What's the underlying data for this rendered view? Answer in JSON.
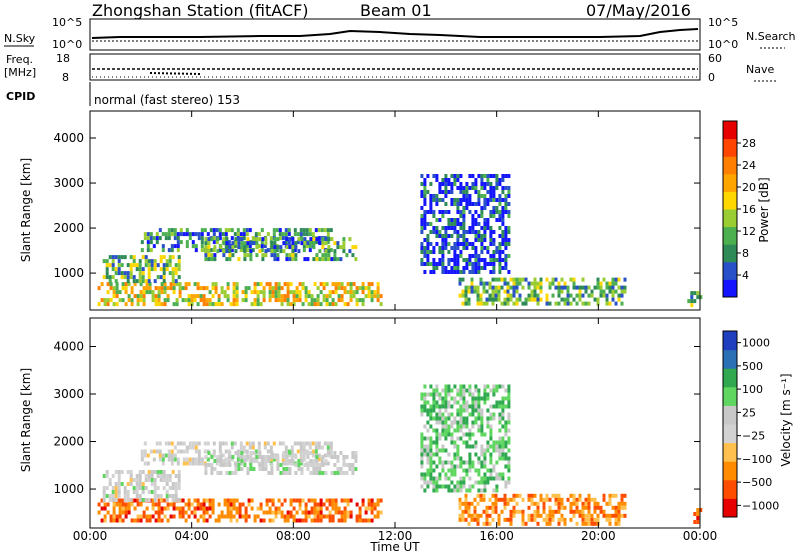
{
  "header": {
    "station": "Zhongshan Station (fitACF)",
    "beam": "Beam 01",
    "date": "07/May/2016"
  },
  "sky_panel": {
    "left_label": "N.Sky",
    "left_ticks": [
      "10^5",
      "10^0"
    ],
    "right_ticks": [
      "10^5",
      "10^0"
    ],
    "right_label": "N.Search"
  },
  "freq_panel": {
    "left_label_1": "Freq.",
    "left_label_2": "[MHz]",
    "left_ticks": [
      "18",
      "8"
    ],
    "right_ticks": [
      "60",
      "0"
    ],
    "right_label": "Nave"
  },
  "cpid": {
    "label": "CPID",
    "text": "normal (fast stereo) 153"
  },
  "x_axis": {
    "label": "Time UT",
    "ticks": [
      "00:00",
      "04:00",
      "08:00",
      "12:00",
      "16:00",
      "20:00",
      "00:00"
    ]
  },
  "colors": {
    "velocity_scale": [
      "#e60000",
      "#ff4d00",
      "#ff8c00",
      "#ffc04d",
      "#d2d2d2",
      "#c8c8c8",
      "#5fd65f",
      "#2fa84f",
      "#2b6fb4",
      "#1f3fbf"
    ],
    "power_scale": [
      "#1414ff",
      "#2850c8",
      "#2e8b57",
      "#4caf50",
      "#9acd32",
      "#ffd700",
      "#ffa500",
      "#ff7f00",
      "#ff4500",
      "#e60000"
    ]
  },
  "chart_data": [
    {
      "type": "heatmap",
      "name": "power",
      "ylabel": "Slant Range [km]",
      "xlabel": "",
      "y_ticks": [
        1000,
        2000,
        3000,
        4000
      ],
      "ylim": [
        180,
        4600
      ],
      "xlim_hours": [
        0,
        24
      ],
      "colorbar": {
        "label": "Power [dB]",
        "ticks": [
          "4",
          "8",
          "12",
          "16",
          "20",
          "24",
          "28"
        ],
        "range": [
          0,
          32
        ]
      },
      "regions": [
        {
          "t0": 0.3,
          "t1": 11.5,
          "r0": 300,
          "r1": 800,
          "level": 0.55
        },
        {
          "t0": 0.5,
          "t1": 3.5,
          "r0": 800,
          "r1": 1400,
          "level": 0.35
        },
        {
          "t0": 2.0,
          "t1": 9.5,
          "r0": 1500,
          "r1": 2000,
          "level": 0.25
        },
        {
          "t0": 4.5,
          "t1": 10.5,
          "r0": 1300,
          "r1": 1800,
          "level": 0.3
        },
        {
          "t0": 13.0,
          "t1": 16.5,
          "r0": 1000,
          "r1": 3200,
          "level": 0.1
        },
        {
          "t0": 14.5,
          "t1": 21.0,
          "r0": 300,
          "r1": 900,
          "level": 0.35
        },
        {
          "t0": 23.5,
          "t1": 24.0,
          "r0": 300,
          "r1": 600,
          "level": 0.4
        }
      ]
    },
    {
      "type": "heatmap",
      "name": "velocity",
      "ylabel": "Slant Range [km]",
      "xlabel": "Time UT",
      "y_ticks": [
        1000,
        2000,
        3000,
        4000
      ],
      "ylim": [
        180,
        4600
      ],
      "xlim_hours": [
        0,
        24
      ],
      "colorbar": {
        "label": "Velocity [m s⁻¹]",
        "ticks": [
          "1000",
          "500",
          "100",
          "25",
          "−25",
          "−100",
          "−500",
          "−1000"
        ],
        "range": [
          -1200,
          1200
        ]
      },
      "regions": [
        {
          "t0": 0.3,
          "t1": 11.5,
          "r0": 300,
          "r1": 800,
          "level": -0.6
        },
        {
          "t0": 0.5,
          "t1": 3.5,
          "r0": 800,
          "r1": 1400,
          "level": 0.0
        },
        {
          "t0": 2.0,
          "t1": 9.5,
          "r0": 1500,
          "r1": 2000,
          "level": 0.0
        },
        {
          "t0": 4.5,
          "t1": 10.5,
          "r0": 1300,
          "r1": 1800,
          "level": 0.05
        },
        {
          "t0": 13.0,
          "t1": 16.5,
          "r0": 1000,
          "r1": 3200,
          "level": 0.3
        },
        {
          "t0": 14.5,
          "t1": 21.0,
          "r0": 300,
          "r1": 900,
          "level": -0.5
        },
        {
          "t0": 23.5,
          "t1": 24.0,
          "r0": 300,
          "r1": 600,
          "level": -0.6
        }
      ]
    }
  ]
}
